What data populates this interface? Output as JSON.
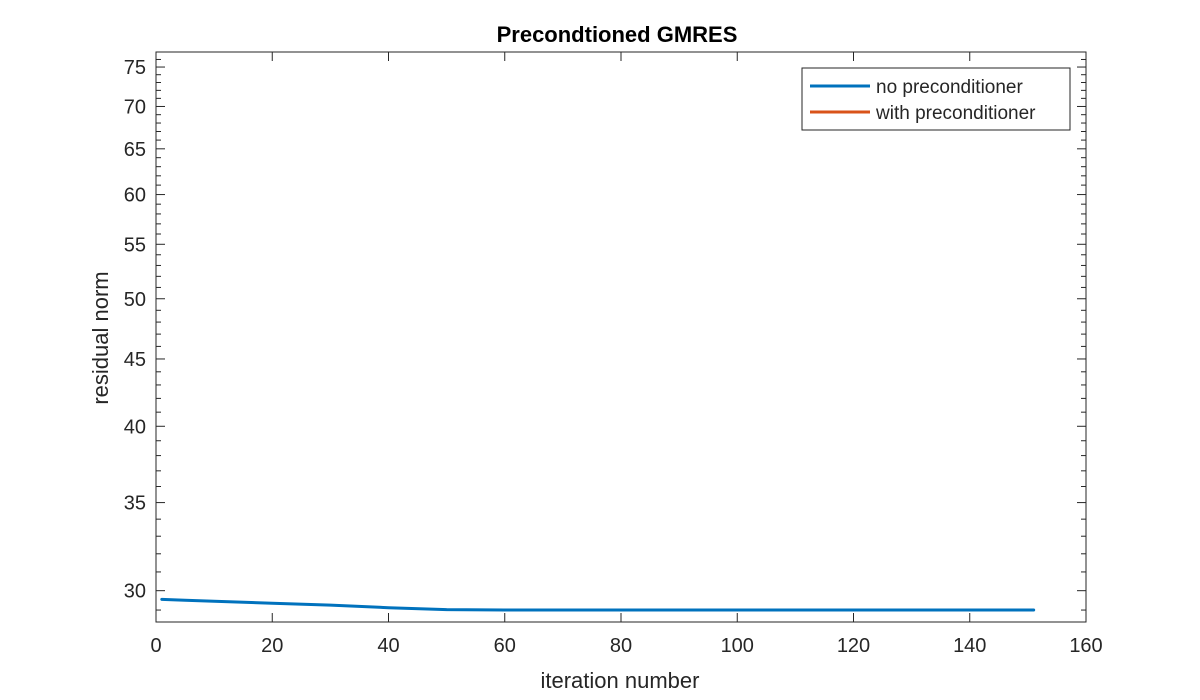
{
  "chart_data": {
    "type": "line",
    "title": "Precondtioned GMRES",
    "xlabel": "iteration number",
    "ylabel": "residual norm",
    "xlim": [
      0,
      160
    ],
    "ylim": [
      28.4,
      77
    ],
    "yscale": "log",
    "xticks": [
      0,
      20,
      40,
      60,
      80,
      100,
      120,
      140,
      160
    ],
    "yticks": [
      30,
      35,
      40,
      45,
      50,
      55,
      60,
      65,
      70,
      75
    ],
    "grid": false,
    "legend_location": "top-right",
    "series": [
      {
        "name": "no preconditioner",
        "color": "#0072BD",
        "x": [
          1,
          5,
          10,
          20,
          30,
          40,
          50,
          60,
          80,
          100,
          120,
          140,
          151
        ],
        "y": [
          29.55,
          29.5,
          29.45,
          29.35,
          29.25,
          29.12,
          29.02,
          29.0,
          29.0,
          29.0,
          29.0,
          29.0,
          29.0
        ]
      },
      {
        "name": "with preconditioner",
        "color": "#D95319",
        "x": [],
        "y": []
      }
    ]
  }
}
